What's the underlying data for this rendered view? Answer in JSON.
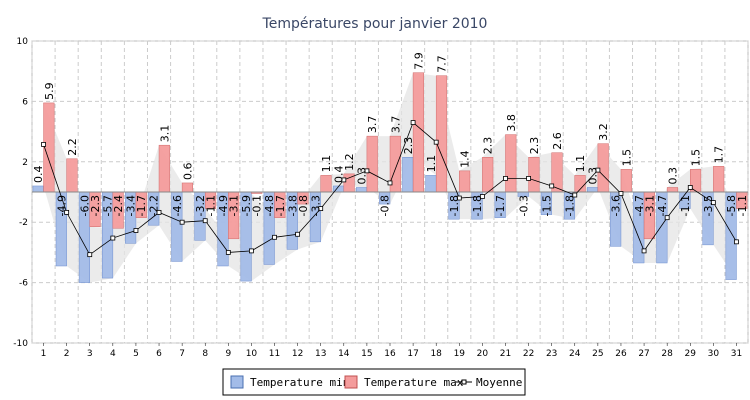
{
  "chart_data": {
    "type": "bar",
    "title": "Températures pour janvier 2010",
    "categories": [
      "1",
      "2",
      "3",
      "4",
      "5",
      "6",
      "7",
      "8",
      "9",
      "10",
      "11",
      "12",
      "13",
      "14",
      "15",
      "16",
      "17",
      "18",
      "19",
      "20",
      "21",
      "22",
      "23",
      "24",
      "25",
      "26",
      "27",
      "28",
      "29",
      "30",
      "31"
    ],
    "series": [
      {
        "name": "Temperature min",
        "type": "bar",
        "color": "#a3bce8",
        "values": [
          0.4,
          -4.9,
          -6.0,
          -5.7,
          -3.4,
          -2.2,
          -4.6,
          -3.2,
          -4.9,
          -5.9,
          -4.8,
          -3.8,
          -3.3,
          0.4,
          0.3,
          -0.8,
          2.3,
          1.1,
          -1.8,
          -1.8,
          -1.7,
          -0.3,
          -1.5,
          -1.8,
          0.3,
          -3.6,
          -4.7,
          -4.7,
          -1.1,
          -3.5,
          -5.8
        ]
      },
      {
        "name": "Temperature max",
        "type": "bar",
        "color": "#f49c9c",
        "values": [
          5.9,
          2.2,
          -2.3,
          -2.4,
          -1.7,
          3.1,
          0.6,
          -1.1,
          -3.1,
          -0.1,
          -1.7,
          -0.8,
          1.1,
          1.2,
          3.7,
          3.7,
          7.9,
          7.7,
          1.4,
          2.3,
          3.8,
          2.3,
          2.6,
          1.1,
          3.2,
          1.5,
          -3.1,
          0.3,
          1.5,
          1.7,
          -1.1
        ]
      },
      {
        "name": "Moyenne",
        "type": "line",
        "color": "#000000",
        "values": [
          3.15,
          -1.35,
          -4.15,
          -3.05,
          -2.55,
          -1.35,
          -2.0,
          -1.9,
          -4.0,
          -3.9,
          -3.0,
          -2.8,
          -1.1,
          0.8,
          1.4,
          0.6,
          4.6,
          3.3,
          -0.4,
          -0.3,
          0.9,
          0.9,
          0.4,
          -0.2,
          1.45,
          -0.1,
          -3.9,
          -1.7,
          0.3,
          -0.7,
          -3.3
        ]
      }
    ],
    "ylim": [
      -10,
      10
    ],
    "yticks": [
      "10",
      "6",
      "2",
      "-2",
      "-6",
      "-10"
    ],
    "grid": true,
    "legend": "bottom"
  }
}
